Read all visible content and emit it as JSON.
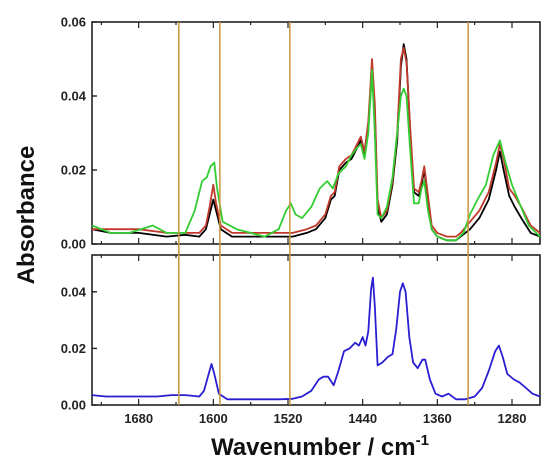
{
  "chart_data": [
    {
      "type": "line",
      "panel": "top",
      "ylabel": "Absorbance",
      "xlim": [
        1730,
        1250
      ],
      "ylim": [
        0,
        0.06
      ],
      "x_reversed": true,
      "yticks": [
        0.0,
        0.02,
        0.04,
        0.06
      ],
      "ytick_labels": [
        "0.00",
        "0.02",
        "0.04",
        "0.06"
      ],
      "series": [
        {
          "color": "#000000",
          "points": [
            [
              1730,
              0.004
            ],
            [
              1710,
              0.003
            ],
            [
              1680,
              0.003
            ],
            [
              1650,
              0.002
            ],
            [
              1630,
              0.0025
            ],
            [
              1615,
              0.002
            ],
            [
              1608,
              0.004
            ],
            [
              1604,
              0.008
            ],
            [
              1600,
              0.012
            ],
            [
              1597,
              0.009
            ],
            [
              1592,
              0.004
            ],
            [
              1580,
              0.002
            ],
            [
              1560,
              0.002
            ],
            [
              1540,
              0.002
            ],
            [
              1525,
              0.002
            ],
            [
              1515,
              0.002
            ],
            [
              1500,
              0.003
            ],
            [
              1490,
              0.004
            ],
            [
              1480,
              0.007
            ],
            [
              1474,
              0.012
            ],
            [
              1470,
              0.013
            ],
            [
              1465,
              0.02
            ],
            [
              1458,
              0.022
            ],
            [
              1452,
              0.023
            ],
            [
              1446,
              0.026
            ],
            [
              1442,
              0.028
            ],
            [
              1438,
              0.024
            ],
            [
              1434,
              0.032
            ],
            [
              1430,
              0.046
            ],
            [
              1427,
              0.036
            ],
            [
              1424,
              0.01
            ],
            [
              1420,
              0.006
            ],
            [
              1414,
              0.008
            ],
            [
              1408,
              0.016
            ],
            [
              1403,
              0.028
            ],
            [
              1399,
              0.048
            ],
            [
              1396,
              0.054
            ],
            [
              1393,
              0.05
            ],
            [
              1389,
              0.03
            ],
            [
              1385,
              0.014
            ],
            [
              1380,
              0.013
            ],
            [
              1377,
              0.016
            ],
            [
              1374,
              0.02
            ],
            [
              1370,
              0.012
            ],
            [
              1366,
              0.004
            ],
            [
              1360,
              0.002
            ],
            [
              1350,
              0.001
            ],
            [
              1340,
              0.001
            ],
            [
              1335,
              0.002
            ],
            [
              1325,
              0.004
            ],
            [
              1315,
              0.007
            ],
            [
              1305,
              0.012
            ],
            [
              1297,
              0.02
            ],
            [
              1293,
              0.025
            ],
            [
              1289,
              0.02
            ],
            [
              1283,
              0.013
            ],
            [
              1277,
              0.01
            ],
            [
              1270,
              0.007
            ],
            [
              1260,
              0.003
            ],
            [
              1250,
              0.002
            ]
          ]
        },
        {
          "color": "#c0392b",
          "points": [
            [
              1730,
              0.004
            ],
            [
              1710,
              0.004
            ],
            [
              1680,
              0.004
            ],
            [
              1650,
              0.003
            ],
            [
              1630,
              0.003
            ],
            [
              1615,
              0.003
            ],
            [
              1608,
              0.005
            ],
            [
              1604,
              0.01
            ],
            [
              1600,
              0.016
            ],
            [
              1597,
              0.011
            ],
            [
              1592,
              0.005
            ],
            [
              1580,
              0.003
            ],
            [
              1560,
              0.003
            ],
            [
              1540,
              0.003
            ],
            [
              1525,
              0.003
            ],
            [
              1515,
              0.003
            ],
            [
              1500,
              0.004
            ],
            [
              1490,
              0.005
            ],
            [
              1480,
              0.008
            ],
            [
              1474,
              0.013
            ],
            [
              1470,
              0.014
            ],
            [
              1465,
              0.021
            ],
            [
              1458,
              0.023
            ],
            [
              1452,
              0.024
            ],
            [
              1446,
              0.027
            ],
            [
              1442,
              0.029
            ],
            [
              1438,
              0.025
            ],
            [
              1434,
              0.033
            ],
            [
              1430,
              0.05
            ],
            [
              1427,
              0.038
            ],
            [
              1424,
              0.012
            ],
            [
              1420,
              0.007
            ],
            [
              1414,
              0.009
            ],
            [
              1408,
              0.017
            ],
            [
              1403,
              0.03
            ],
            [
              1399,
              0.05
            ],
            [
              1396,
              0.053
            ],
            [
              1393,
              0.049
            ],
            [
              1389,
              0.031
            ],
            [
              1385,
              0.015
            ],
            [
              1380,
              0.014
            ],
            [
              1377,
              0.017
            ],
            [
              1374,
              0.021
            ],
            [
              1370,
              0.013
            ],
            [
              1366,
              0.005
            ],
            [
              1360,
              0.003
            ],
            [
              1350,
              0.002
            ],
            [
              1340,
              0.002
            ],
            [
              1335,
              0.003
            ],
            [
              1325,
              0.006
            ],
            [
              1315,
              0.009
            ],
            [
              1305,
              0.014
            ],
            [
              1297,
              0.022
            ],
            [
              1293,
              0.027
            ],
            [
              1289,
              0.023
            ],
            [
              1283,
              0.015
            ],
            [
              1277,
              0.013
            ],
            [
              1270,
              0.01
            ],
            [
              1260,
              0.005
            ],
            [
              1250,
              0.003
            ]
          ]
        },
        {
          "color": "#33cc33",
          "points": [
            [
              1730,
              0.005
            ],
            [
              1710,
              0.003
            ],
            [
              1690,
              0.003
            ],
            [
              1665,
              0.005
            ],
            [
              1650,
              0.003
            ],
            [
              1630,
              0.003
            ],
            [
              1620,
              0.009
            ],
            [
              1612,
              0.017
            ],
            [
              1607,
              0.018
            ],
            [
              1603,
              0.021
            ],
            [
              1599,
              0.022
            ],
            [
              1596,
              0.015
            ],
            [
              1590,
              0.006
            ],
            [
              1575,
              0.004
            ],
            [
              1560,
              0.003
            ],
            [
              1545,
              0.002
            ],
            [
              1530,
              0.004
            ],
            [
              1522,
              0.009
            ],
            [
              1517,
              0.011
            ],
            [
              1512,
              0.008
            ],
            [
              1505,
              0.007
            ],
            [
              1495,
              0.01
            ],
            [
              1486,
              0.015
            ],
            [
              1478,
              0.017
            ],
            [
              1472,
              0.015
            ],
            [
              1466,
              0.019
            ],
            [
              1458,
              0.021
            ],
            [
              1452,
              0.024
            ],
            [
              1446,
              0.026
            ],
            [
              1442,
              0.027
            ],
            [
              1438,
              0.023
            ],
            [
              1434,
              0.03
            ],
            [
              1430,
              0.047
            ],
            [
              1427,
              0.03
            ],
            [
              1424,
              0.008
            ],
            [
              1420,
              0.007
            ],
            [
              1414,
              0.01
            ],
            [
              1408,
              0.018
            ],
            [
              1403,
              0.03
            ],
            [
              1399,
              0.04
            ],
            [
              1396,
              0.042
            ],
            [
              1393,
              0.04
            ],
            [
              1389,
              0.025
            ],
            [
              1385,
              0.011
            ],
            [
              1380,
              0.011
            ],
            [
              1377,
              0.015
            ],
            [
              1374,
              0.017
            ],
            [
              1370,
              0.009
            ],
            [
              1366,
              0.004
            ],
            [
              1360,
              0.002
            ],
            [
              1350,
              0.001
            ],
            [
              1340,
              0.001
            ],
            [
              1332,
              0.003
            ],
            [
              1325,
              0.008
            ],
            [
              1317,
              0.012
            ],
            [
              1308,
              0.016
            ],
            [
              1300,
              0.024
            ],
            [
              1293,
              0.028
            ],
            [
              1287,
              0.022
            ],
            [
              1280,
              0.016
            ],
            [
              1272,
              0.011
            ],
            [
              1262,
              0.005
            ],
            [
              1250,
              0.002
            ]
          ]
        }
      ]
    },
    {
      "type": "line",
      "panel": "bottom",
      "xlabel": "Wavenumber / cm",
      "xlabel_superscript": "-1",
      "xlim": [
        1730,
        1250
      ],
      "ylim": [
        0,
        0.053
      ],
      "x_reversed": true,
      "xticks": [
        1680,
        1600,
        1520,
        1440,
        1360,
        1280
      ],
      "xtick_labels": [
        "1680",
        "1600",
        "1520",
        "1440",
        "1360",
        "1280"
      ],
      "yticks": [
        0.0,
        0.02,
        0.04
      ],
      "ytick_labels": [
        "0.00",
        "0.02",
        "0.04"
      ],
      "series": [
        {
          "color": "#2a1fd0",
          "points": [
            [
              1730,
              0.0035
            ],
            [
              1715,
              0.003
            ],
            [
              1700,
              0.003
            ],
            [
              1680,
              0.003
            ],
            [
              1660,
              0.003
            ],
            [
              1645,
              0.0035
            ],
            [
              1630,
              0.0035
            ],
            [
              1615,
              0.003
            ],
            [
              1610,
              0.005
            ],
            [
              1605,
              0.011
            ],
            [
              1602,
              0.0145
            ],
            [
              1599,
              0.011
            ],
            [
              1594,
              0.004
            ],
            [
              1585,
              0.002
            ],
            [
              1570,
              0.002
            ],
            [
              1550,
              0.002
            ],
            [
              1530,
              0.002
            ],
            [
              1515,
              0.0022
            ],
            [
              1505,
              0.003
            ],
            [
              1495,
              0.005
            ],
            [
              1487,
              0.009
            ],
            [
              1482,
              0.01
            ],
            [
              1477,
              0.01
            ],
            [
              1471,
              0.007
            ],
            [
              1466,
              0.012
            ],
            [
              1460,
              0.019
            ],
            [
              1454,
              0.02
            ],
            [
              1448,
              0.022
            ],
            [
              1444,
              0.021
            ],
            [
              1440,
              0.024
            ],
            [
              1437,
              0.021
            ],
            [
              1434,
              0.026
            ],
            [
              1431,
              0.041
            ],
            [
              1429,
              0.045
            ],
            [
              1427,
              0.035
            ],
            [
              1424,
              0.014
            ],
            [
              1419,
              0.015
            ],
            [
              1413,
              0.017
            ],
            [
              1408,
              0.018
            ],
            [
              1404,
              0.027
            ],
            [
              1400,
              0.04
            ],
            [
              1397,
              0.043
            ],
            [
              1394,
              0.04
            ],
            [
              1390,
              0.024
            ],
            [
              1386,
              0.015
            ],
            [
              1381,
              0.013
            ],
            [
              1376,
              0.016
            ],
            [
              1373,
              0.016
            ],
            [
              1368,
              0.009
            ],
            [
              1362,
              0.004
            ],
            [
              1355,
              0.003
            ],
            [
              1348,
              0.004
            ],
            [
              1340,
              0.002
            ],
            [
              1330,
              0.002
            ],
            [
              1320,
              0.003
            ],
            [
              1312,
              0.006
            ],
            [
              1305,
              0.012
            ],
            [
              1298,
              0.019
            ],
            [
              1294,
              0.021
            ],
            [
              1290,
              0.017
            ],
            [
              1285,
              0.011
            ],
            [
              1278,
              0.009
            ],
            [
              1272,
              0.008
            ],
            [
              1265,
              0.006
            ],
            [
              1258,
              0.004
            ],
            [
              1250,
              0.003
            ]
          ]
        }
      ]
    }
  ],
  "ylabel_text": "Absorbance",
  "reference_lines": {
    "color": "#c8963c",
    "x_values": [
      1637,
      1593,
      1518,
      1327
    ]
  }
}
